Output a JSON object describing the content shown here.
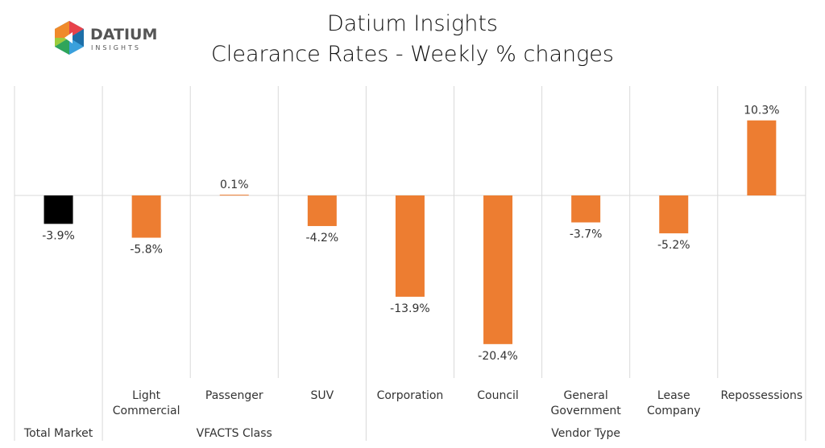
{
  "title": "Datium Insights",
  "subtitle": "Clearance Rates - Weekly % changes",
  "logo": {
    "text": "DATIUM",
    "subtext": "INSIGHTS"
  },
  "chart_data": {
    "type": "bar",
    "title": "Datium Insights",
    "subtitle": "Clearance Rates - Weekly % changes",
    "categories": [
      "Total Market",
      "Light Commercial",
      "Passenger",
      "SUV",
      "Corporation",
      "Council",
      "General Government",
      "Lease Company",
      "Repossessions"
    ],
    "category_lines": [
      [
        ""
      ],
      [
        "Light",
        "Commercial"
      ],
      [
        "Passenger"
      ],
      [
        "SUV"
      ],
      [
        "Corporation"
      ],
      [
        "Council"
      ],
      [
        "General",
        "Government"
      ],
      [
        "Lease",
        "Company"
      ],
      [
        "Repossessions"
      ]
    ],
    "groups": [
      {
        "label": "Total Market",
        "count": 1
      },
      {
        "label": "VFACTS Class",
        "count": 3
      },
      {
        "label": "Vendor Type",
        "count": 5
      }
    ],
    "values": [
      -3.9,
      -5.8,
      0.1,
      -4.2,
      -13.9,
      -20.4,
      -3.7,
      -5.2,
      10.3
    ],
    "data_labels": [
      "-3.9%",
      "-5.8%",
      "0.1%",
      "-4.2%",
      "-13.9%",
      "-20.4%",
      "-3.7%",
      "-5.2%",
      "10.3%"
    ],
    "colors": [
      "#000000",
      "#ED7D31",
      "#ED7D31",
      "#ED7D31",
      "#ED7D31",
      "#ED7D31",
      "#ED7D31",
      "#ED7D31",
      "#ED7D31"
    ],
    "ylim": [
      -20.4,
      10.3
    ],
    "grid": "vertical category separators",
    "legend": "none"
  }
}
